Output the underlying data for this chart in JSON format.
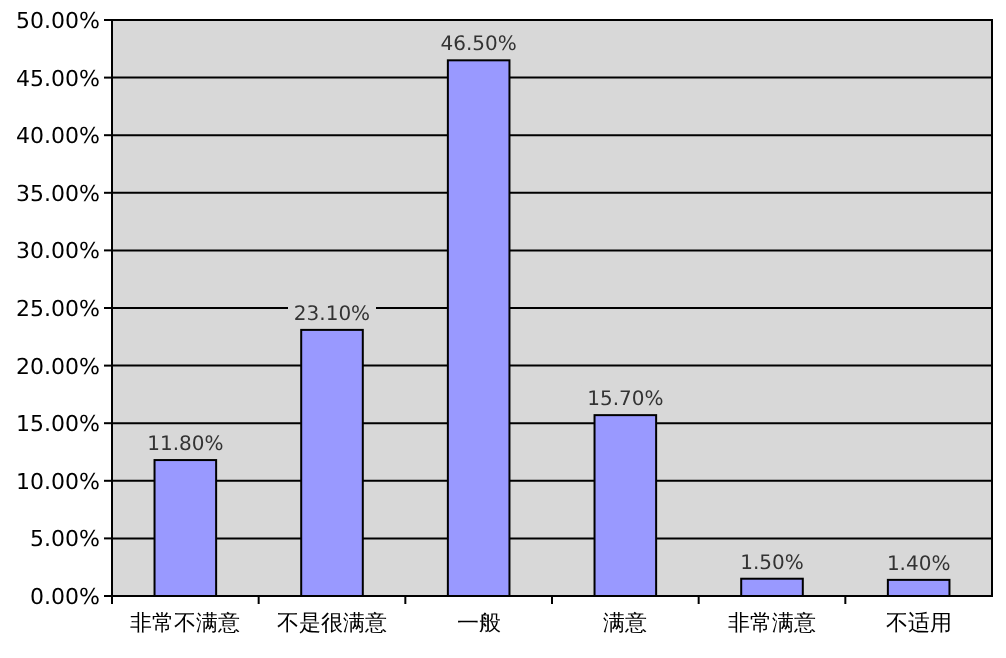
{
  "chart_data": {
    "type": "bar",
    "categories": [
      "非常不满意",
      "不是很满意",
      "一般",
      "满意",
      "非常满意",
      "不适用"
    ],
    "values": [
      11.8,
      23.1,
      46.5,
      15.7,
      1.5,
      1.4
    ],
    "value_labels": [
      "11.80%",
      "23.10%",
      "46.50%",
      "15.70%",
      "1.50%",
      "1.40%"
    ],
    "color": "#9999ff",
    "ylim": [
      0,
      50
    ],
    "yticks": [
      {
        "value": 0,
        "label": "0.00%"
      },
      {
        "value": 5,
        "label": "5.00%"
      },
      {
        "value": 10,
        "label": "10.00%"
      },
      {
        "value": 15,
        "label": "15.00%"
      },
      {
        "value": 20,
        "label": "20.00%"
      },
      {
        "value": 25,
        "label": "25.00%"
      },
      {
        "value": 30,
        "label": "30.00%"
      },
      {
        "value": 35,
        "label": "35.00%"
      },
      {
        "value": 40,
        "label": "40.00%"
      },
      {
        "value": 45,
        "label": "45.00%"
      },
      {
        "value": 50,
        "label": "50.00%"
      }
    ],
    "grid": "y"
  }
}
